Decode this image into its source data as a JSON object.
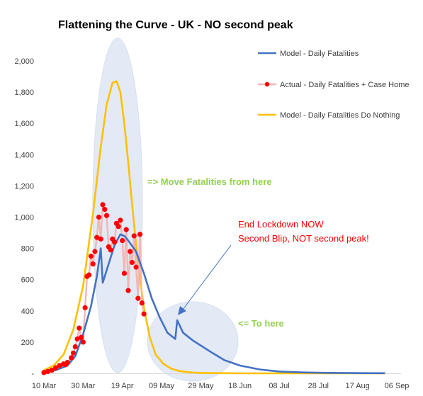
{
  "chart_data": {
    "type": "line",
    "title": "Flattening the Curve - UK - NO second peak",
    "x_ticks": [
      "10 Mar",
      "30 Mar",
      "19 Apr",
      "09 May",
      "29 May",
      "18 Jun",
      "08 Jul",
      "28 Jul",
      "17 Aug",
      "06 Sep"
    ],
    "y_ticks": [
      "-",
      "200",
      "400",
      "600",
      "800",
      "1,000",
      "1,200",
      "1,400",
      "1,600",
      "1,800",
      "2,000"
    ],
    "xlim": [
      "2020-03-10",
      "2020-09-06"
    ],
    "ylim": [
      0,
      2100
    ],
    "legend_position": "top-right",
    "grid": false,
    "series": [
      {
        "name": "Model - Daily Fatalities",
        "color": "#4472c4",
        "style": "line",
        "x": [
          "2020-03-10",
          "2020-03-16",
          "2020-03-22",
          "2020-03-26",
          "2020-03-30",
          "2020-04-03",
          "2020-04-06",
          "2020-04-08",
          "2020-04-09",
          "2020-04-12",
          "2020-04-15",
          "2020-04-18",
          "2020-04-20",
          "2020-04-22",
          "2020-04-26",
          "2020-04-30",
          "2020-05-04",
          "2020-05-08",
          "2020-05-12",
          "2020-05-16",
          "2020-05-17",
          "2020-05-20",
          "2020-05-25",
          "2020-05-30",
          "2020-06-04",
          "2020-06-10",
          "2020-06-18",
          "2020-06-28",
          "2020-07-08",
          "2020-07-20",
          "2020-08-01",
          "2020-08-15",
          "2020-08-31"
        ],
        "values": [
          10,
          20,
          50,
          110,
          250,
          430,
          620,
          800,
          580,
          700,
          820,
          890,
          880,
          850,
          780,
          640,
          480,
          360,
          260,
          220,
          340,
          260,
          210,
          170,
          130,
          85,
          50,
          25,
          12,
          6,
          3,
          2,
          1
        ]
      },
      {
        "name": "Actual - Daily Fatalities + Case Home",
        "color": "#ff0000",
        "line_color": "#f4b6b6",
        "style": "line-markers",
        "x": [
          "2020-03-10",
          "2020-03-12",
          "2020-03-14",
          "2020-03-16",
          "2020-03-18",
          "2020-03-20",
          "2020-03-21",
          "2020-03-22",
          "2020-03-24",
          "2020-03-25",
          "2020-03-26",
          "2020-03-27",
          "2020-03-28",
          "2020-03-29",
          "2020-03-30",
          "2020-03-31",
          "2020-04-01",
          "2020-04-02",
          "2020-04-03",
          "2020-04-04",
          "2020-04-05",
          "2020-04-06",
          "2020-04-07",
          "2020-04-08",
          "2020-04-09",
          "2020-04-10",
          "2020-04-11",
          "2020-04-12",
          "2020-04-13",
          "2020-04-14",
          "2020-04-15",
          "2020-04-16",
          "2020-04-17",
          "2020-04-18",
          "2020-04-19",
          "2020-04-20",
          "2020-04-21",
          "2020-04-22",
          "2020-04-23",
          "2020-04-24",
          "2020-04-25",
          "2020-04-26",
          "2020-04-27",
          "2020-04-28",
          "2020-04-29",
          "2020-04-30"
        ],
        "values": [
          5,
          12,
          20,
          35,
          50,
          60,
          55,
          70,
          100,
          130,
          170,
          220,
          290,
          230,
          200,
          420,
          620,
          630,
          750,
          700,
          780,
          870,
          1000,
          860,
          1080,
          1050,
          1010,
          810,
          790,
          860,
          840,
          960,
          940,
          980,
          850,
          640,
          920,
          530,
          780,
          710,
          880,
          680,
          480,
          890,
          450,
          380
        ]
      },
      {
        "name": "Model - Daily Fatalities Do Nothing",
        "color": "#ffc000",
        "style": "line",
        "x": [
          "2020-03-10",
          "2020-03-15",
          "2020-03-20",
          "2020-03-25",
          "2020-03-30",
          "2020-04-04",
          "2020-04-08",
          "2020-04-11",
          "2020-04-14",
          "2020-04-16",
          "2020-04-18",
          "2020-04-20",
          "2020-04-22",
          "2020-04-24",
          "2020-04-27",
          "2020-04-30",
          "2020-05-03",
          "2020-05-06",
          "2020-05-10",
          "2020-05-14",
          "2020-05-18",
          "2020-05-22",
          "2020-05-26",
          "2020-06-01",
          "2020-06-10",
          "2020-06-20",
          "2020-07-10",
          "2020-08-31"
        ],
        "values": [
          20,
          50,
          120,
          280,
          560,
          1020,
          1450,
          1720,
          1860,
          1870,
          1800,
          1600,
          1350,
          1080,
          700,
          420,
          230,
          120,
          60,
          30,
          15,
          8,
          4,
          2,
          1,
          0,
          0,
          0
        ]
      }
    ],
    "annotations": [
      {
        "text": "=> Move Fatalities from here",
        "color": "#92d050"
      },
      {
        "text": "<= To here",
        "color": "#92d050"
      },
      {
        "text": "End Lockdown NOW",
        "color": "#ff0000"
      },
      {
        "text": "Second Blip, NOT second peak!",
        "color": "#ff0000"
      }
    ],
    "shapes": {
      "highlight_fill": "#dae3f3",
      "highlight_stroke": "#c9d5ea",
      "arrow_color": "#4472c4",
      "axis_color": "#d9d9d9"
    }
  }
}
